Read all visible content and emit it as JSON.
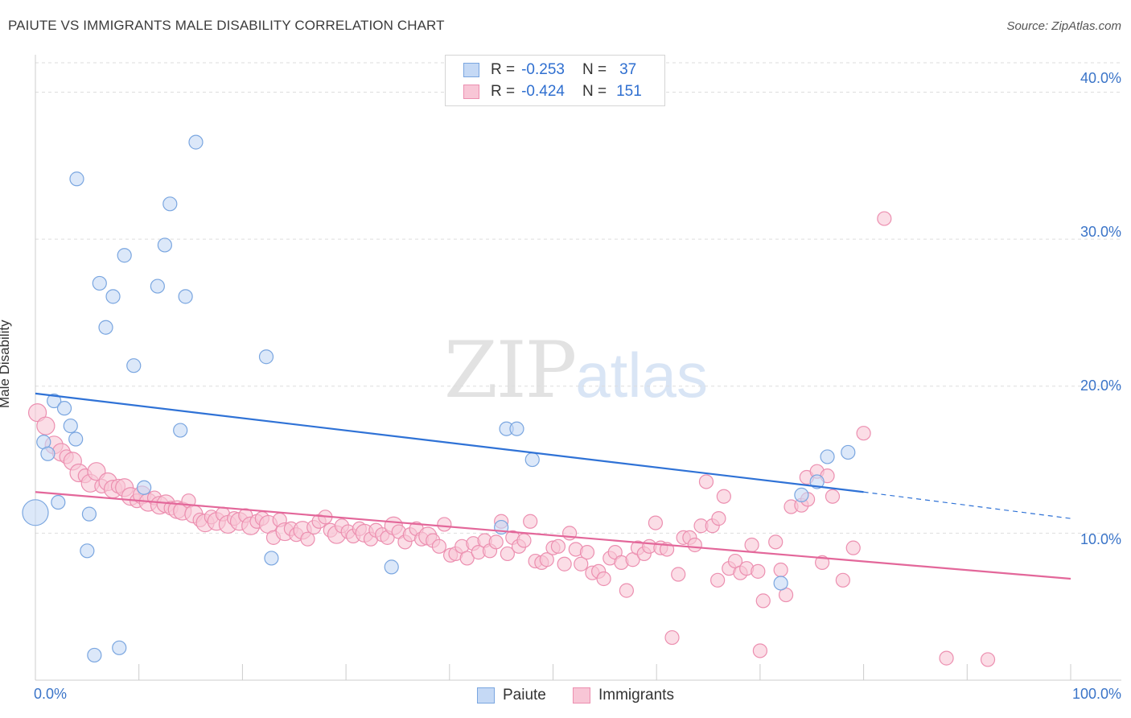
{
  "title": "PAIUTE VS IMMIGRANTS MALE DISABILITY CORRELATION CHART",
  "source": "Source: ZipAtlas.com",
  "watermark": {
    "zip": "ZIP",
    "atlas": "atlas"
  },
  "legend": {
    "r_label": "R =",
    "n_label": "N =",
    "rows": [
      {
        "name": "Paiute",
        "r": "-0.253",
        "n": "37"
      },
      {
        "name": "Immigrants",
        "r": "-0.424",
        "n": "151"
      }
    ]
  },
  "colors": {
    "paiute_fill": "#c5d9f5",
    "paiute_stroke": "#7aa6e0",
    "paiute_line": "#2f72d6",
    "imm_fill": "#f8c6d6",
    "imm_stroke": "#ec8fb0",
    "imm_line": "#e3679a",
    "axis_text": "#3a74c8",
    "grid": "#dddddd"
  },
  "chart_data": {
    "type": "scatter",
    "title": "PAIUTE VS IMMIGRANTS MALE DISABILITY CORRELATION CHART",
    "xlabel": "",
    "ylabel": "Male Disability",
    "xlim": [
      0,
      100
    ],
    "ylim": [
      0,
      42
    ],
    "x_tick_labels": [
      "0.0%",
      "100.0%"
    ],
    "y_ticks": [
      10,
      20,
      30,
      40
    ],
    "y_tick_labels": [
      "10.0%",
      "20.0%",
      "30.0%",
      "40.0%"
    ],
    "grid": true,
    "legend_position": "top-center",
    "series": [
      {
        "name": "Paiute",
        "r": -0.253,
        "n": 37,
        "trend": {
          "x0": 0,
          "y0": 19.5,
          "x1": 80,
          "y1": 12.8,
          "dash_to_x": 100,
          "dash_to_y": 11.0
        },
        "points": [
          [
            0.0,
            11.4,
            3
          ],
          [
            0.8,
            16.2,
            1
          ],
          [
            1.2,
            15.4,
            1
          ],
          [
            1.8,
            19.0,
            1
          ],
          [
            2.2,
            12.1,
            1
          ],
          [
            2.8,
            18.5,
            1
          ],
          [
            3.4,
            17.3,
            1
          ],
          [
            3.9,
            16.4,
            1
          ],
          [
            4.0,
            34.1,
            1
          ],
          [
            5.0,
            8.8,
            1
          ],
          [
            5.2,
            11.3,
            1
          ],
          [
            5.7,
            1.7,
            1
          ],
          [
            6.2,
            27.0,
            1
          ],
          [
            6.8,
            24.0,
            1
          ],
          [
            7.5,
            26.1,
            1
          ],
          [
            8.1,
            2.2,
            1
          ],
          [
            8.6,
            28.9,
            1
          ],
          [
            9.5,
            21.4,
            1
          ],
          [
            10.5,
            13.1,
            1
          ],
          [
            11.8,
            26.8,
            1
          ],
          [
            12.5,
            29.6,
            1
          ],
          [
            13.0,
            32.4,
            1
          ],
          [
            14.0,
            17.0,
            1
          ],
          [
            14.5,
            26.1,
            1
          ],
          [
            15.5,
            36.6,
            1
          ],
          [
            22.3,
            22.0,
            1
          ],
          [
            22.8,
            8.3,
            1
          ],
          [
            34.4,
            7.7,
            1
          ],
          [
            45.0,
            10.4,
            1
          ],
          [
            45.5,
            17.1,
            1
          ],
          [
            46.5,
            17.1,
            1
          ],
          [
            48.0,
            15.0,
            1
          ],
          [
            72.0,
            6.6,
            1
          ],
          [
            74.0,
            12.6,
            1
          ],
          [
            75.5,
            13.5,
            1
          ],
          [
            76.5,
            15.2,
            1
          ],
          [
            78.5,
            15.5,
            1
          ]
        ]
      },
      {
        "name": "Immigrants",
        "r": -0.424,
        "n": 151,
        "trend": {
          "x0": 0,
          "y0": 12.8,
          "x1": 100,
          "y1": 6.9
        },
        "points": [
          [
            0.2,
            18.2,
            2
          ],
          [
            1.0,
            17.3,
            2
          ],
          [
            1.8,
            16.0,
            2
          ],
          [
            2.5,
            15.5,
            2
          ],
          [
            3.0,
            15.2,
            1
          ],
          [
            3.6,
            14.9,
            2
          ],
          [
            4.2,
            14.1,
            2
          ],
          [
            4.8,
            13.9,
            1
          ],
          [
            5.3,
            13.4,
            2
          ],
          [
            5.9,
            14.2,
            2
          ],
          [
            6.4,
            13.2,
            1
          ],
          [
            7.0,
            13.5,
            2
          ],
          [
            7.5,
            13.0,
            2
          ],
          [
            8.0,
            13.2,
            1
          ],
          [
            8.6,
            13.1,
            2
          ],
          [
            9.2,
            12.5,
            2
          ],
          [
            9.8,
            12.2,
            1
          ],
          [
            10.3,
            12.6,
            2
          ],
          [
            10.9,
            12.1,
            2
          ],
          [
            11.5,
            12.4,
            1
          ],
          [
            12.0,
            11.9,
            2
          ],
          [
            12.6,
            12.0,
            2
          ],
          [
            13.1,
            11.7,
            1
          ],
          [
            13.7,
            11.6,
            2
          ],
          [
            14.2,
            11.5,
            2
          ],
          [
            14.8,
            12.2,
            1
          ],
          [
            15.3,
            11.3,
            2
          ],
          [
            15.9,
            10.9,
            1
          ],
          [
            16.4,
            10.7,
            2
          ],
          [
            17.0,
            11.1,
            1
          ],
          [
            17.5,
            10.8,
            2
          ],
          [
            18.1,
            11.3,
            1
          ],
          [
            18.6,
            10.6,
            2
          ],
          [
            19.2,
            11.0,
            1
          ],
          [
            19.7,
            10.8,
            2
          ],
          [
            20.3,
            11.2,
            1
          ],
          [
            20.8,
            10.5,
            2
          ],
          [
            21.4,
            10.8,
            1
          ],
          [
            21.9,
            11.0,
            1
          ],
          [
            22.5,
            10.6,
            2
          ],
          [
            23.0,
            9.7,
            1
          ],
          [
            23.6,
            10.9,
            1
          ],
          [
            24.1,
            10.1,
            2
          ],
          [
            24.7,
            10.3,
            1
          ],
          [
            25.2,
            9.9,
            1
          ],
          [
            25.8,
            10.2,
            2
          ],
          [
            26.3,
            9.6,
            1
          ],
          [
            26.9,
            10.4,
            1
          ],
          [
            27.4,
            10.8,
            1
          ],
          [
            28.0,
            11.1,
            1
          ],
          [
            28.5,
            10.2,
            1
          ],
          [
            29.1,
            9.9,
            2
          ],
          [
            29.6,
            10.5,
            1
          ],
          [
            30.2,
            10.1,
            1
          ],
          [
            30.7,
            9.8,
            1
          ],
          [
            31.3,
            10.3,
            1
          ],
          [
            31.8,
            10.0,
            2
          ],
          [
            32.4,
            9.6,
            1
          ],
          [
            32.9,
            10.2,
            1
          ],
          [
            33.5,
            9.9,
            1
          ],
          [
            34.0,
            9.7,
            1
          ],
          [
            34.6,
            10.5,
            2
          ],
          [
            35.1,
            10.1,
            1
          ],
          [
            35.7,
            9.4,
            1
          ],
          [
            36.2,
            9.9,
            1
          ],
          [
            36.8,
            10.3,
            1
          ],
          [
            37.3,
            9.6,
            1
          ],
          [
            37.9,
            9.8,
            2
          ],
          [
            38.4,
            9.5,
            1
          ],
          [
            39.0,
            9.1,
            1
          ],
          [
            39.5,
            10.6,
            1
          ],
          [
            40.1,
            8.5,
            1
          ],
          [
            40.6,
            8.6,
            1
          ],
          [
            41.2,
            9.1,
            1
          ],
          [
            41.7,
            8.3,
            1
          ],
          [
            42.3,
            9.3,
            1
          ],
          [
            42.8,
            8.7,
            1
          ],
          [
            43.4,
            9.5,
            1
          ],
          [
            43.9,
            8.8,
            1
          ],
          [
            44.5,
            9.4,
            1
          ],
          [
            45.0,
            10.8,
            1
          ],
          [
            45.6,
            8.6,
            1
          ],
          [
            46.1,
            9.7,
            1
          ],
          [
            46.7,
            9.1,
            1
          ],
          [
            47.2,
            9.5,
            1
          ],
          [
            47.8,
            10.8,
            1
          ],
          [
            48.3,
            8.1,
            1
          ],
          [
            48.9,
            8.0,
            1
          ],
          [
            49.4,
            8.2,
            1
          ],
          [
            50.0,
            9.0,
            1
          ],
          [
            50.5,
            9.1,
            1
          ],
          [
            51.1,
            7.9,
            1
          ],
          [
            51.6,
            10.0,
            1
          ],
          [
            52.2,
            8.9,
            1
          ],
          [
            52.7,
            7.9,
            1
          ],
          [
            53.3,
            8.7,
            1
          ],
          [
            53.8,
            7.3,
            1
          ],
          [
            54.4,
            7.4,
            1
          ],
          [
            54.9,
            6.9,
            1
          ],
          [
            55.5,
            8.3,
            1
          ],
          [
            56.0,
            8.7,
            1
          ],
          [
            56.6,
            8.0,
            1
          ],
          [
            57.1,
            6.1,
            1
          ],
          [
            57.7,
            8.2,
            1
          ],
          [
            58.2,
            9.0,
            1
          ],
          [
            58.8,
            8.6,
            1
          ],
          [
            59.3,
            9.1,
            1
          ],
          [
            59.9,
            10.7,
            1
          ],
          [
            60.4,
            9.0,
            1
          ],
          [
            61.0,
            8.9,
            1
          ],
          [
            61.5,
            2.9,
            1
          ],
          [
            62.1,
            7.2,
            1
          ],
          [
            62.6,
            9.7,
            1
          ],
          [
            63.2,
            9.7,
            1
          ],
          [
            63.7,
            9.2,
            1
          ],
          [
            64.3,
            10.5,
            1
          ],
          [
            64.8,
            13.5,
            1
          ],
          [
            65.4,
            10.5,
            1
          ],
          [
            65.9,
            6.8,
            1
          ],
          [
            66.5,
            12.5,
            1
          ],
          [
            67.0,
            7.6,
            1
          ],
          [
            67.6,
            8.1,
            1
          ],
          [
            68.1,
            7.3,
            1
          ],
          [
            68.7,
            7.6,
            1
          ],
          [
            69.2,
            9.2,
            1
          ],
          [
            69.8,
            7.4,
            1
          ],
          [
            70.3,
            5.4,
            1
          ],
          [
            71.5,
            9.4,
            1
          ],
          [
            72.0,
            7.5,
            1
          ],
          [
            72.5,
            5.8,
            1
          ],
          [
            73.0,
            11.8,
            1
          ],
          [
            74.0,
            11.9,
            1
          ],
          [
            74.5,
            13.8,
            1
          ],
          [
            75.5,
            14.2,
            1
          ],
          [
            76.0,
            8.0,
            1
          ],
          [
            76.5,
            13.9,
            1
          ],
          [
            77.0,
            12.5,
            1
          ],
          [
            78.0,
            6.8,
            1
          ],
          [
            79.0,
            9.0,
            1
          ],
          [
            80.0,
            16.8,
            1
          ],
          [
            82.0,
            31.4,
            1
          ],
          [
            88.0,
            1.5,
            1
          ],
          [
            92.0,
            1.4,
            1
          ],
          [
            70.0,
            2.0,
            1
          ],
          [
            74.6,
            12.3,
            1
          ],
          [
            66.0,
            11.0,
            1
          ]
        ]
      }
    ]
  }
}
